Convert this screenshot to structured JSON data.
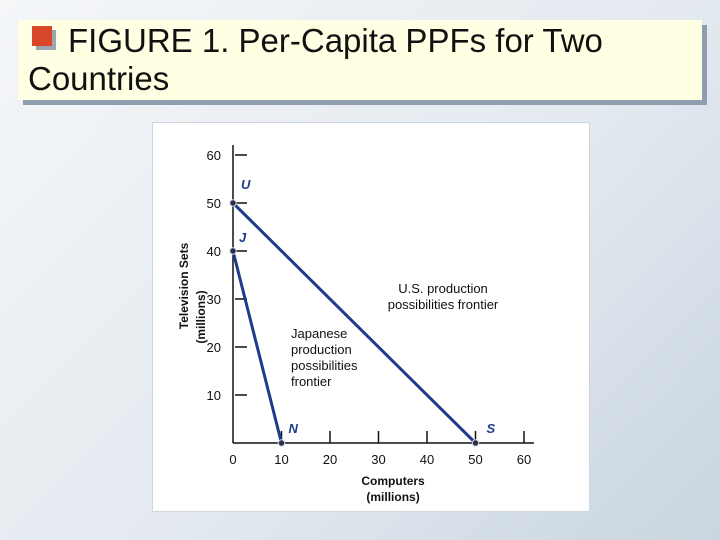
{
  "title": {
    "text": "FIGURE 1. Per-Capita PPFs for Two Countries"
  },
  "chart_data": {
    "type": "line",
    "title": "FIGURE 1. Per-Capita PPFs for Two Countries",
    "xlabel": "Computers (millions)",
    "ylabel": "Television Sets (millions)",
    "xlabel_lines": [
      "Computers",
      "(millions)"
    ],
    "ylabel_lines": [
      "Television Sets",
      "(millions)"
    ],
    "xlim": [
      0,
      60
    ],
    "ylim": [
      0,
      60
    ],
    "x_ticks": [
      10,
      20,
      30,
      40,
      50,
      60
    ],
    "y_ticks": [
      10,
      20,
      30,
      40,
      50,
      60
    ],
    "origin_label": "0",
    "grid": false,
    "series": [
      {
        "points": [
          [
            0,
            50
          ],
          [
            50,
            0
          ]
        ],
        "color": "#1f3c8c"
      },
      {
        "points": [
          [
            0,
            40
          ],
          [
            10,
            0
          ]
        ],
        "color": "#1f3c8c"
      }
    ],
    "points": [
      {
        "label": "U",
        "x": 0,
        "y": 50
      },
      {
        "label": "J",
        "x": 0,
        "y": 40
      },
      {
        "label": "N",
        "x": 10,
        "y": 0
      },
      {
        "label": "S",
        "x": 50,
        "y": 0
      }
    ],
    "annotations": [
      {
        "lines": [
          "U.S. production",
          "possibilities frontier"
        ]
      },
      {
        "lines": [
          "Japanese",
          "production",
          "possibilities",
          "frontier"
        ]
      }
    ]
  }
}
